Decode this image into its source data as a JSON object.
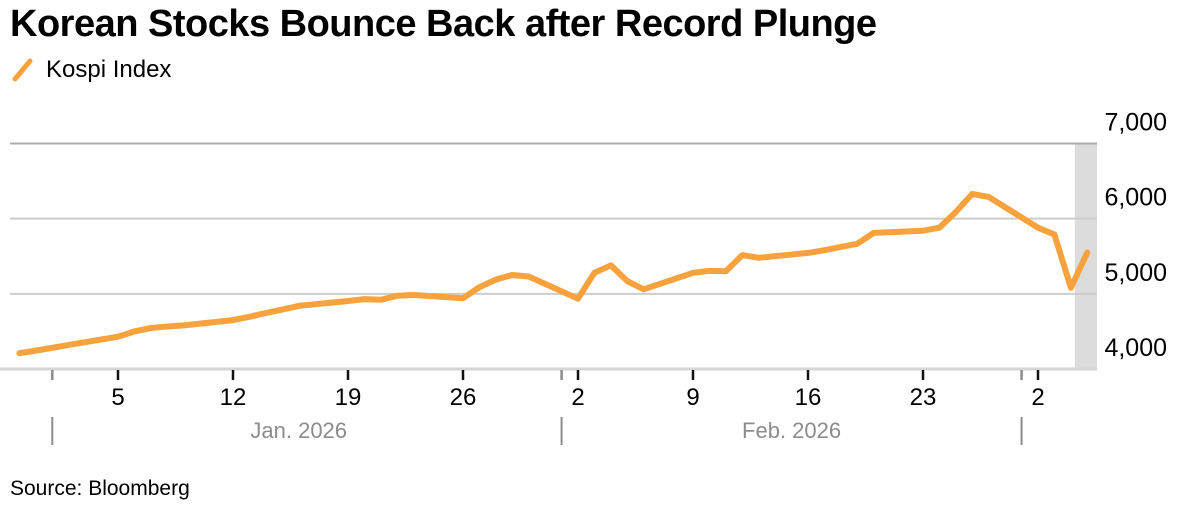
{
  "header": {
    "title": "Korean Stocks Bounce Back after Record Plunge"
  },
  "legend": {
    "series_label": "Kospi Index"
  },
  "footer": {
    "source": "Source: Bloomberg"
  },
  "colors": {
    "line": "#F8A23D",
    "grid": "#CDCDCD",
    "grid_top": "#ADADAD",
    "axis": "#D6D6D6",
    "tick": "#111111",
    "month_text": "#8C8C8C",
    "band": "#DCDCDC",
    "text": "#000000",
    "background": "#FFFFFF"
  },
  "chart_data": {
    "type": "line",
    "title": "Korean Stocks Bounce Back after Record Plunge",
    "grid": "horizontal",
    "legend_position": "top-left",
    "y_axis": {
      "side": "right",
      "min": 4000,
      "max": 7000,
      "ticks": [
        4000,
        5000,
        6000,
        7000
      ],
      "tick_labels": [
        "4,000",
        "5,000",
        "6,000",
        "7,000"
      ]
    },
    "x_axis": {
      "week_ticks": [
        {
          "date": "2026-01-05",
          "label": "5"
        },
        {
          "date": "2026-01-12",
          "label": "12"
        },
        {
          "date": "2026-01-19",
          "label": "19"
        },
        {
          "date": "2026-01-26",
          "label": "26"
        },
        {
          "date": "2026-02-02",
          "label": "2"
        },
        {
          "date": "2026-02-09",
          "label": "9"
        },
        {
          "date": "2026-02-16",
          "label": "16"
        },
        {
          "date": "2026-02-23",
          "label": "23"
        },
        {
          "date": "2026-03-02",
          "label": "2"
        }
      ],
      "month_separators": [
        "2026-01-01",
        "2026-02-01",
        "2026-03-01"
      ],
      "month_labels": [
        {
          "label": "Jan. 2026",
          "center_date": "2026-01-16"
        },
        {
          "label": "Feb. 2026",
          "center_date": "2026-02-15"
        }
      ]
    },
    "highlight_band": {
      "start_date": "2026-03-04",
      "end_date": "2026-03-05"
    },
    "series": [
      {
        "name": "Kospi Index",
        "points": [
          [
            "2025-12-30",
            4210
          ],
          [
            "2025-12-31",
            4245
          ],
          [
            "2026-01-02",
            4320
          ],
          [
            "2026-01-05",
            4430
          ],
          [
            "2026-01-06",
            4500
          ],
          [
            "2026-01-07",
            4545
          ],
          [
            "2026-01-08",
            4565
          ],
          [
            "2026-01-09",
            4580
          ],
          [
            "2026-01-12",
            4650
          ],
          [
            "2026-01-13",
            4695
          ],
          [
            "2026-01-14",
            4745
          ],
          [
            "2026-01-15",
            4790
          ],
          [
            "2026-01-16",
            4840
          ],
          [
            "2026-01-19",
            4905
          ],
          [
            "2026-01-20",
            4930
          ],
          [
            "2026-01-21",
            4920
          ],
          [
            "2026-01-22",
            4975
          ],
          [
            "2026-01-23",
            4985
          ],
          [
            "2026-01-26",
            4940
          ],
          [
            "2026-01-27",
            5090
          ],
          [
            "2026-01-28",
            5190
          ],
          [
            "2026-01-29",
            5250
          ],
          [
            "2026-01-30",
            5230
          ],
          [
            "2026-02-02",
            4935
          ],
          [
            "2026-02-03",
            5280
          ],
          [
            "2026-02-04",
            5380
          ],
          [
            "2026-02-05",
            5170
          ],
          [
            "2026-02-06",
            5060
          ],
          [
            "2026-02-09",
            5280
          ],
          [
            "2026-02-10",
            5305
          ],
          [
            "2026-02-11",
            5300
          ],
          [
            "2026-02-12",
            5515
          ],
          [
            "2026-02-13",
            5480
          ],
          [
            "2026-02-16",
            5545
          ],
          [
            "2026-02-17",
            5580
          ],
          [
            "2026-02-18",
            5625
          ],
          [
            "2026-02-19",
            5665
          ],
          [
            "2026-02-20",
            5810
          ],
          [
            "2026-02-23",
            5840
          ],
          [
            "2026-02-24",
            5880
          ],
          [
            "2026-02-25",
            6090
          ],
          [
            "2026-02-26",
            6330
          ],
          [
            "2026-02-27",
            6290
          ],
          [
            "2026-03-02",
            5880
          ],
          [
            "2026-03-03",
            5790
          ],
          [
            "2026-03-04",
            5080
          ],
          [
            "2026-03-05",
            5550
          ]
        ]
      }
    ]
  }
}
